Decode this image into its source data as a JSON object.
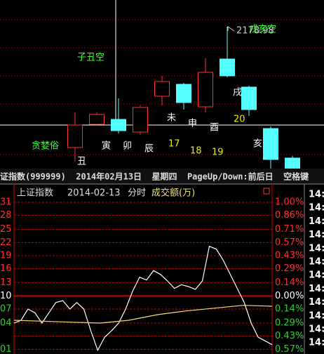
{
  "chart_data": [
    {
      "type": "candlestick",
      "ylim": [
        0,
        240
      ],
      "candles": [
        {
          "open": 30,
          "close": 62,
          "high": 80,
          "low": 10
        },
        {
          "open": 63,
          "close": 77,
          "high": 80,
          "low": 62
        },
        {
          "open": 70,
          "close": 54,
          "high": 100,
          "low": 50
        },
        {
          "open": 52,
          "close": 87,
          "high": 90,
          "low": 48
        },
        {
          "open": 103,
          "close": 124,
          "high": 132,
          "low": 90
        },
        {
          "open": 120,
          "close": 94,
          "high": 122,
          "low": 84
        },
        {
          "open": 88,
          "close": 137,
          "high": 157,
          "low": 80
        },
        {
          "open": 156,
          "close": 132,
          "high": 202,
          "low": 130
        },
        {
          "open": 116,
          "close": 84,
          "high": 118,
          "low": 75
        },
        {
          "open": 57,
          "close": 13,
          "high": 60,
          "low": 0
        },
        {
          "open": 15,
          "close": 0,
          "high": 18,
          "low": 0
        }
      ],
      "up_color": "#ff3030",
      "down_color": "#54ffff",
      "annotations": [
        "子丑空",
        "贪婪俗",
        "丑",
        "寅",
        "卯",
        "辰",
        "未",
        "申",
        "酉",
        "戌",
        "亥",
        "17",
        "18",
        "19",
        "20",
        "2178.98",
        "戌亥空"
      ]
    },
    {
      "type": "line",
      "title": "上证指数",
      "date": "2014-02-13",
      "mode": "分时",
      "volume_label": "成交额(万)",
      "ylim": [
        -0.62,
        1.15
      ],
      "yticks": [
        {
          "value": 1.0,
          "label": "1.00%"
        },
        {
          "value": 0.86,
          "label": "0.86%"
        },
        {
          "value": 0.71,
          "label": "0.71%"
        },
        {
          "value": 0.57,
          "label": "0.57%"
        },
        {
          "value": 0.43,
          "label": "0.43%"
        },
        {
          "value": 0.29,
          "label": "0.29%"
        },
        {
          "value": 0.14,
          "label": "0.14%"
        },
        {
          "value": 0,
          "label": "0.00%"
        },
        {
          "value": -0.14,
          "label": "0.14%"
        },
        {
          "value": -0.29,
          "label": "0.29%"
        },
        {
          "value": -0.43,
          "label": "0.43%"
        },
        {
          "value": -0.57,
          "label": "0.57%"
        }
      ],
      "left_labels": [
        "31",
        "28",
        "25",
        "22",
        "19",
        "16",
        "13",
        "10",
        "07",
        "04",
        null,
        "01"
      ],
      "series": [
        {
          "name": "price",
          "color": "#ffffff",
          "values": [
            -0.29,
            -0.26,
            -0.14,
            -0.18,
            -0.29,
            -0.18,
            -0.07,
            -0.05,
            -0.14,
            -0.07,
            -0.14,
            -0.37,
            -0.58,
            -0.44,
            -0.37,
            -0.29,
            -0.14,
            0.05,
            0.2,
            0.17,
            0.27,
            0.23,
            0.16,
            0.08,
            0.12,
            0.1,
            0.07,
            0.16,
            0.53,
            0.5,
            0.38,
            0.23,
            0.08,
            -0.07,
            -0.29,
            -0.44,
            -0.48,
            -0.52
          ]
        },
        {
          "name": "average",
          "color": "#e8e070",
          "values": [
            -0.26,
            -0.27,
            -0.28,
            -0.29,
            -0.26,
            -0.2,
            -0.16,
            -0.13,
            -0.1,
            -0.11
          ]
        }
      ],
      "time_labels": [
        "14:",
        "14:",
        "14:",
        "14:",
        "14:",
        "14:",
        "14:",
        "14:",
        "14:",
        "14:",
        "14:",
        "14:"
      ]
    }
  ],
  "status_bar": "证指数(999999)  2014年02月13日  星期四  PageUp/Down:前后日  空格键"
}
